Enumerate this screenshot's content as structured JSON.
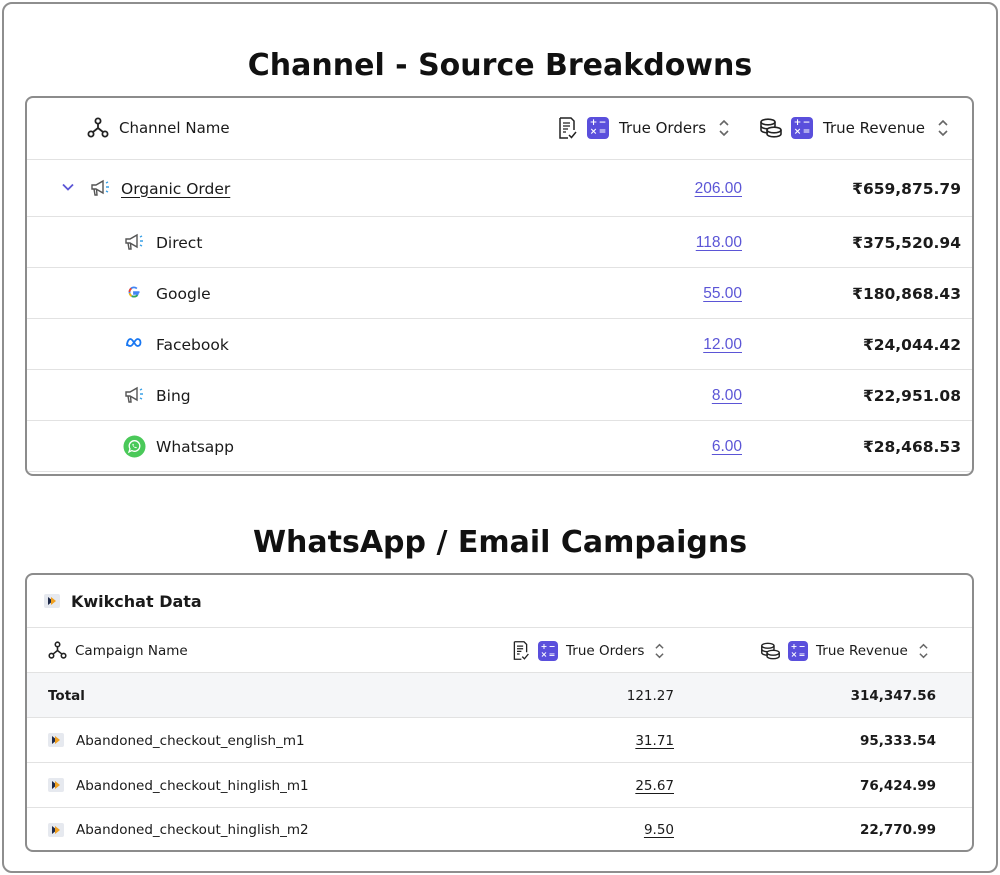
{
  "sections": {
    "channel_title": "Channel - Source Breakdowns",
    "campaign_title": "WhatsApp / Email Campaigns"
  },
  "channel_table": {
    "headers": {
      "name": "Channel Name",
      "orders": "True Orders",
      "revenue": "True Revenue"
    },
    "group": {
      "name": "Organic Order",
      "orders": "206.00",
      "revenue": "₹659,875.79"
    },
    "rows": [
      {
        "name": "Direct",
        "orders": "118.00",
        "revenue": "₹375,520.94",
        "icon": "megaphone-icon"
      },
      {
        "name": "Google",
        "orders": "55.00",
        "revenue": "₹180,868.43",
        "icon": "google-icon"
      },
      {
        "name": "Facebook",
        "orders": "12.00",
        "revenue": "₹24,044.42",
        "icon": "meta-icon"
      },
      {
        "name": "Bing",
        "orders": "8.00",
        "revenue": "₹22,951.08",
        "icon": "megaphone-icon"
      },
      {
        "name": "Whatsapp",
        "orders": "6.00",
        "revenue": "₹28,468.53",
        "icon": "whatsapp-icon"
      }
    ]
  },
  "campaign_table": {
    "panel_title": "Kwikchat Data",
    "headers": {
      "name": "Campaign Name",
      "orders": "True Orders",
      "revenue": "True Revenue"
    },
    "total": {
      "name": "Total",
      "orders": "121.27",
      "revenue": "314,347.56"
    },
    "rows": [
      {
        "name": "Abandoned_checkout_english_m1",
        "orders": "31.71",
        "revenue": "95,333.54"
      },
      {
        "name": "Abandoned_checkout_hinglish_m1",
        "orders": "25.67",
        "revenue": "76,424.99"
      },
      {
        "name": "Abandoned_checkout_hinglish_m2",
        "orders": "9.50",
        "revenue": "22,770.99"
      }
    ]
  },
  "colors": {
    "accent": "#5a4fdc",
    "link": "#5b55d6",
    "whatsapp": "#4ac959",
    "meta": "#1877f2"
  }
}
